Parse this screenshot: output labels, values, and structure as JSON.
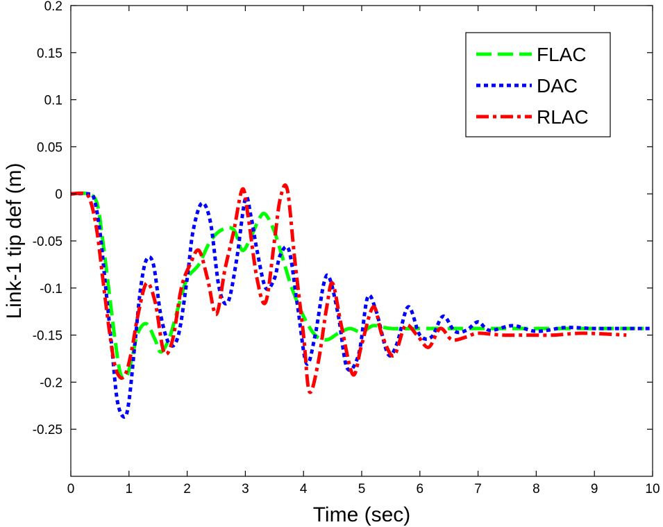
{
  "chart_data": {
    "type": "line",
    "title": "",
    "xlabel": "Time (sec)",
    "ylabel": "Link-1 tip def (m)",
    "xlim": [
      0,
      10
    ],
    "ylim": [
      -0.3,
      0.2
    ],
    "xticks": [
      0,
      1,
      2,
      3,
      4,
      5,
      6,
      7,
      8,
      9,
      10
    ],
    "xtick_labels": [
      "0",
      "1",
      "2",
      "3",
      "4",
      "5",
      "6",
      "7",
      "8",
      "9",
      "10"
    ],
    "yticks": [
      0.2,
      0.15,
      0.1,
      0.05,
      0,
      -0.05,
      -0.1,
      -0.15,
      -0.2,
      -0.25
    ],
    "ytick_labels": [
      "0.2",
      "0.15",
      "0.1",
      "0.05",
      "0",
      "-0.05",
      "-0.1",
      "-0.15",
      "-0.2",
      "-0.25"
    ],
    "grid": false,
    "legend_position": "top-right",
    "series": [
      {
        "name": "FLAC",
        "color": "#00ff00",
        "style": "dashed",
        "x": [
          0,
          0.3,
          0.45,
          0.55,
          0.65,
          0.75,
          0.85,
          0.95,
          1.05,
          1.15,
          1.3,
          1.45,
          1.55,
          1.7,
          1.85,
          2.0,
          2.2,
          2.4,
          2.6,
          2.8,
          2.95,
          3.1,
          3.25,
          3.35,
          3.5,
          3.65,
          3.8,
          4.0,
          4.2,
          4.4,
          4.6,
          4.8,
          5.0,
          5.2,
          5.5,
          6.0,
          6.5,
          7.0,
          8.0,
          9.0,
          9.85
        ],
        "y": [
          0,
          0,
          -0.01,
          -0.05,
          -0.1,
          -0.15,
          -0.19,
          -0.195,
          -0.175,
          -0.148,
          -0.138,
          -0.155,
          -0.168,
          -0.152,
          -0.12,
          -0.09,
          -0.075,
          -0.05,
          -0.038,
          -0.038,
          -0.06,
          -0.045,
          -0.025,
          -0.022,
          -0.04,
          -0.07,
          -0.1,
          -0.13,
          -0.15,
          -0.155,
          -0.148,
          -0.143,
          -0.147,
          -0.14,
          -0.143,
          -0.143,
          -0.143,
          -0.143,
          -0.143,
          -0.143,
          -0.143
        ]
      },
      {
        "name": "DAC",
        "color": "#0000ff",
        "style": "dotted",
        "x": [
          0,
          0.3,
          0.4,
          0.5,
          0.6,
          0.7,
          0.8,
          0.92,
          1.0,
          1.1,
          1.2,
          1.3,
          1.42,
          1.55,
          1.7,
          1.85,
          2.0,
          2.1,
          2.25,
          2.4,
          2.55,
          2.7,
          2.85,
          3.0,
          3.1,
          3.2,
          3.35,
          3.5,
          3.6,
          3.75,
          3.9,
          4.05,
          4.2,
          4.35,
          4.45,
          4.6,
          4.75,
          4.95,
          5.1,
          5.25,
          5.45,
          5.6,
          5.8,
          6.0,
          6.2,
          6.4,
          6.6,
          6.8,
          7.0,
          7.2,
          7.6,
          8.0,
          8.5,
          9.0,
          9.5,
          9.95
        ],
        "y": [
          0,
          0,
          -0.005,
          -0.04,
          -0.1,
          -0.16,
          -0.22,
          -0.237,
          -0.22,
          -0.16,
          -0.1,
          -0.07,
          -0.075,
          -0.13,
          -0.16,
          -0.15,
          -0.09,
          -0.04,
          -0.01,
          -0.03,
          -0.1,
          -0.115,
          -0.07,
          -0.005,
          -0.025,
          -0.06,
          -0.1,
          -0.09,
          -0.065,
          -0.06,
          -0.12,
          -0.18,
          -0.15,
          -0.095,
          -0.09,
          -0.13,
          -0.185,
          -0.17,
          -0.11,
          -0.125,
          -0.17,
          -0.16,
          -0.12,
          -0.15,
          -0.152,
          -0.13,
          -0.146,
          -0.145,
          -0.136,
          -0.145,
          -0.14,
          -0.146,
          -0.142,
          -0.143,
          -0.143,
          -0.143
        ]
      },
      {
        "name": "RLAC",
        "color": "#ff0000",
        "style": "dashdot",
        "x": [
          0,
          0.25,
          0.35,
          0.45,
          0.55,
          0.65,
          0.75,
          0.85,
          0.95,
          1.05,
          1.15,
          1.3,
          1.45,
          1.6,
          1.75,
          1.9,
          2.05,
          2.2,
          2.35,
          2.5,
          2.65,
          2.8,
          2.95,
          3.05,
          3.2,
          3.35,
          3.5,
          3.6,
          3.72,
          3.85,
          4.0,
          4.1,
          4.25,
          4.4,
          4.5,
          4.65,
          4.85,
          5.0,
          5.2,
          5.35,
          5.55,
          5.75,
          5.95,
          6.15,
          6.35,
          6.55,
          6.8,
          7.0,
          7.4,
          7.8,
          8.3,
          8.8,
          9.55
        ],
        "y": [
          0,
          0,
          -0.01,
          -0.04,
          -0.09,
          -0.14,
          -0.18,
          -0.195,
          -0.19,
          -0.165,
          -0.13,
          -0.095,
          -0.115,
          -0.168,
          -0.155,
          -0.1,
          -0.075,
          -0.06,
          -0.09,
          -0.128,
          -0.08,
          -0.04,
          0.005,
          -0.025,
          -0.09,
          -0.115,
          -0.05,
          -0.005,
          0.005,
          -0.07,
          -0.15,
          -0.21,
          -0.18,
          -0.12,
          -0.095,
          -0.14,
          -0.192,
          -0.16,
          -0.12,
          -0.15,
          -0.172,
          -0.14,
          -0.15,
          -0.163,
          -0.143,
          -0.155,
          -0.152,
          -0.148,
          -0.15,
          -0.15,
          -0.15,
          -0.148,
          -0.15
        ]
      }
    ]
  }
}
